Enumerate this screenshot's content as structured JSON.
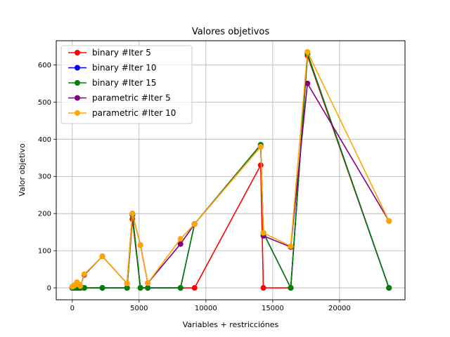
{
  "chart_data": {
    "type": "line",
    "title": "Valores objetivos",
    "xlabel": "Variables + restricciónes",
    "ylabel": "Valor objetivo",
    "xlim": [
      -1200,
      24900
    ],
    "ylim": [
      -32,
      665
    ],
    "xticks": [
      0,
      5000,
      10000,
      15000,
      20000
    ],
    "xtick_labels": [
      "0",
      "5000",
      "10000",
      "15000",
      "20000"
    ],
    "yticks": [
      0,
      100,
      200,
      300,
      400,
      500,
      600
    ],
    "ytick_labels": [
      "0",
      "100",
      "200",
      "300",
      "400",
      "500",
      "600"
    ],
    "grid": true,
    "legend_position": "upper-left",
    "x": [
      0,
      80,
      200,
      350,
      450,
      600,
      900,
      2250,
      4100,
      4500,
      5100,
      5650,
      8100,
      9150,
      14100,
      14300,
      16350,
      17600,
      23700
    ],
    "series": [
      {
        "name": "binary #Iter 5",
        "color": "#ff0000",
        "values": [
          0,
          0,
          0,
          0,
          0,
          0,
          0,
          0,
          0,
          185,
          0,
          0,
          0,
          0,
          330,
          0,
          0,
          625,
          0
        ]
      },
      {
        "name": "binary #Iter 10",
        "color": "#0000ff",
        "values": [
          0,
          0,
          0,
          0,
          0,
          0,
          0,
          0,
          0,
          197,
          0,
          0,
          0,
          172,
          385,
          148,
          0,
          630,
          0
        ]
      },
      {
        "name": "binary #Iter 15",
        "color": "#008000",
        "values": [
          0,
          0,
          0,
          0,
          0,
          0,
          0,
          0,
          0,
          197,
          0,
          0,
          0,
          172,
          385,
          148,
          0,
          630,
          0
        ]
      },
      {
        "name": "parametric #Iter 5",
        "color": "#800080",
        "values": [
          3,
          5,
          8,
          15,
          10,
          5,
          35,
          85,
          12,
          200,
          115,
          13,
          118,
          172,
          380,
          140,
          110,
          550,
          180
        ]
      },
      {
        "name": "parametric #Iter 10",
        "color": "#ffa500",
        "values": [
          3,
          5,
          8,
          15,
          10,
          5,
          37,
          85,
          12,
          200,
          115,
          13,
          132,
          172,
          380,
          148,
          112,
          635,
          180
        ]
      }
    ]
  }
}
